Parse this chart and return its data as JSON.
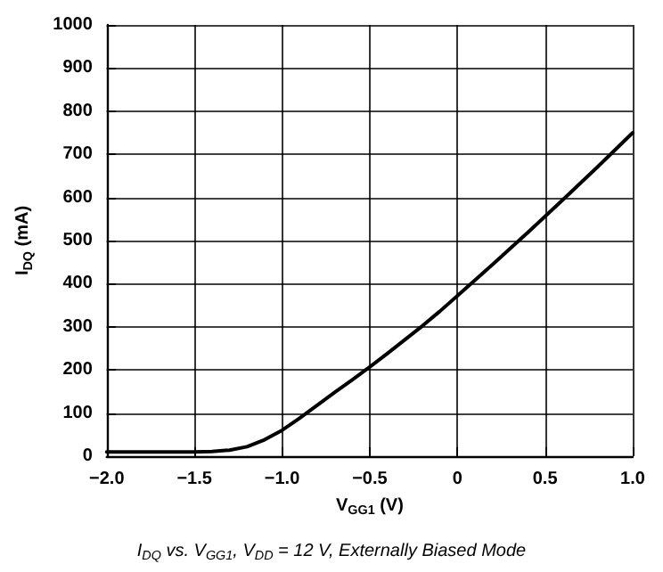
{
  "chart_data": {
    "type": "line",
    "xlabel": "V$_{GG1}$ (V)",
    "ylabel": "I$_{DQ}$ (mA)",
    "annotations": [
      "I$_{DQ}$ vs. V$_{GG1}$, V$_{DD}$ = 12 V, Externally Biased Mode"
    ],
    "x": [
      -2.0,
      -1.8,
      -1.6,
      -1.5,
      -1.4,
      -1.3,
      -1.2,
      -1.1,
      -1.0,
      -0.9,
      -0.8,
      -0.7,
      -0.6,
      -0.5,
      -0.4,
      -0.3,
      -0.2,
      -0.1,
      0,
      0.2,
      0.4,
      0.6,
      0.8,
      1.0
    ],
    "series": [
      {
        "color": "#000000",
        "values": [
          10,
          10,
          10,
          10,
          11,
          14,
          22,
          38,
          60,
          88,
          118,
          148,
          177,
          207,
          238,
          270,
          302,
          336,
          372,
          444,
          518,
          594,
          671,
          750
        ]
      }
    ],
    "xlim": [
      -2,
      1
    ],
    "ylim": [
      0,
      1000
    ],
    "xticks": [
      {
        "value": -2,
        "label": "−2.0"
      },
      {
        "value": -1.5,
        "label": "−1.5"
      },
      {
        "value": -1,
        "label": "−1.0"
      },
      {
        "value": -0.5,
        "label": "−0.5"
      },
      0,
      0.5,
      {
        "value": 1,
        "label": "1.0"
      }
    ],
    "yticks": [
      0,
      100,
      200,
      300,
      400,
      500,
      600,
      700,
      800,
      900,
      1000
    ],
    "grid": true,
    "marker": "none",
    "line_style": "solid"
  }
}
